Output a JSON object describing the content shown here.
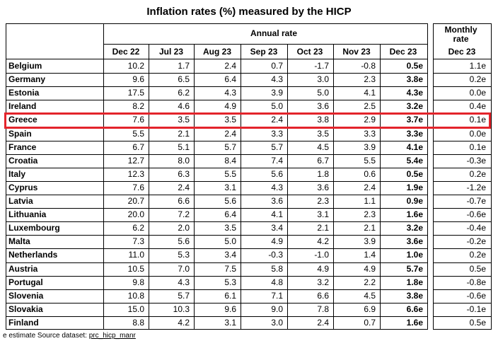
{
  "title": "Inflation rates (%) measured by the HICP",
  "annual_label": "Annual rate",
  "monthly_label_1": "Monthly",
  "monthly_label_2": "rate",
  "columns": [
    "Dec 22",
    "Jul 23",
    "Aug 23",
    "Sep 23",
    "Oct 23",
    "Nov 23",
    "Dec 23",
    "Dec 23"
  ],
  "rows": [
    {
      "country": "Belgium",
      "v": [
        "10.2",
        "1.7",
        "2.4",
        "0.7",
        "-1.7",
        "-0.8",
        "0.5e",
        "1.1e"
      ]
    },
    {
      "country": "Germany",
      "v": [
        "9.6",
        "6.5",
        "6.4",
        "4.3",
        "3.0",
        "2.3",
        "3.8e",
        "0.2e"
      ]
    },
    {
      "country": "Estonia",
      "v": [
        "17.5",
        "6.2",
        "4.3",
        "3.9",
        "5.0",
        "4.1",
        "4.3e",
        "0.0e"
      ]
    },
    {
      "country": "Ireland",
      "v": [
        "8.2",
        "4.6",
        "4.9",
        "5.0",
        "3.6",
        "2.5",
        "3.2e",
        "0.4e"
      ]
    },
    {
      "country": "Greece",
      "v": [
        "7.6",
        "3.5",
        "3.5",
        "2.4",
        "3.8",
        "2.9",
        "3.7e",
        "0.1e"
      ]
    },
    {
      "country": "Spain",
      "v": [
        "5.5",
        "2.1",
        "2.4",
        "3.3",
        "3.5",
        "3.3",
        "3.3e",
        "0.0e"
      ]
    },
    {
      "country": "France",
      "v": [
        "6.7",
        "5.1",
        "5.7",
        "5.7",
        "4.5",
        "3.9",
        "4.1e",
        "0.1e"
      ]
    },
    {
      "country": "Croatia",
      "v": [
        "12.7",
        "8.0",
        "8.4",
        "7.4",
        "6.7",
        "5.5",
        "5.4e",
        "-0.3e"
      ]
    },
    {
      "country": "Italy",
      "v": [
        "12.3",
        "6.3",
        "5.5",
        "5.6",
        "1.8",
        "0.6",
        "0.5e",
        "0.2e"
      ]
    },
    {
      "country": "Cyprus",
      "v": [
        "7.6",
        "2.4",
        "3.1",
        "4.3",
        "3.6",
        "2.4",
        "1.9e",
        "-1.2e"
      ]
    },
    {
      "country": "Latvia",
      "v": [
        "20.7",
        "6.6",
        "5.6",
        "3.6",
        "2.3",
        "1.1",
        "0.9e",
        "-0.7e"
      ]
    },
    {
      "country": "Lithuania",
      "v": [
        "20.0",
        "7.2",
        "6.4",
        "4.1",
        "3.1",
        "2.3",
        "1.6e",
        "-0.6e"
      ]
    },
    {
      "country": "Luxembourg",
      "v": [
        "6.2",
        "2.0",
        "3.5",
        "3.4",
        "2.1",
        "2.1",
        "3.2e",
        "-0.4e"
      ]
    },
    {
      "country": "Malta",
      "v": [
        "7.3",
        "5.6",
        "5.0",
        "4.9",
        "4.2",
        "3.9",
        "3.6e",
        "-0.2e"
      ]
    },
    {
      "country": "Netherlands",
      "v": [
        "11.0",
        "5.3",
        "3.4",
        "-0.3",
        "-1.0",
        "1.4",
        "1.0e",
        "0.2e"
      ]
    },
    {
      "country": "Austria",
      "v": [
        "10.5",
        "7.0",
        "7.5",
        "5.8",
        "4.9",
        "4.9",
        "5.7e",
        "0.5e"
      ]
    },
    {
      "country": "Portugal",
      "v": [
        "9.8",
        "4.3",
        "5.3",
        "4.8",
        "3.2",
        "2.2",
        "1.8e",
        "-0.8e"
      ]
    },
    {
      "country": "Slovenia",
      "v": [
        "10.8",
        "5.7",
        "6.1",
        "7.1",
        "6.6",
        "4.5",
        "3.8e",
        "-0.6e"
      ]
    },
    {
      "country": "Slovakia",
      "v": [
        "15.0",
        "10.3",
        "9.6",
        "9.0",
        "7.8",
        "6.9",
        "6.6e",
        "-0.1e"
      ]
    },
    {
      "country": "Finland",
      "v": [
        "8.8",
        "4.2",
        "3.1",
        "3.0",
        "2.4",
        "0.7",
        "1.6e",
        "0.5e"
      ]
    }
  ],
  "footnote_prefix": "e estimate   Source dataset: ",
  "footnote_link": "prc_hicp_manr",
  "highlight_color": "#e3242b"
}
